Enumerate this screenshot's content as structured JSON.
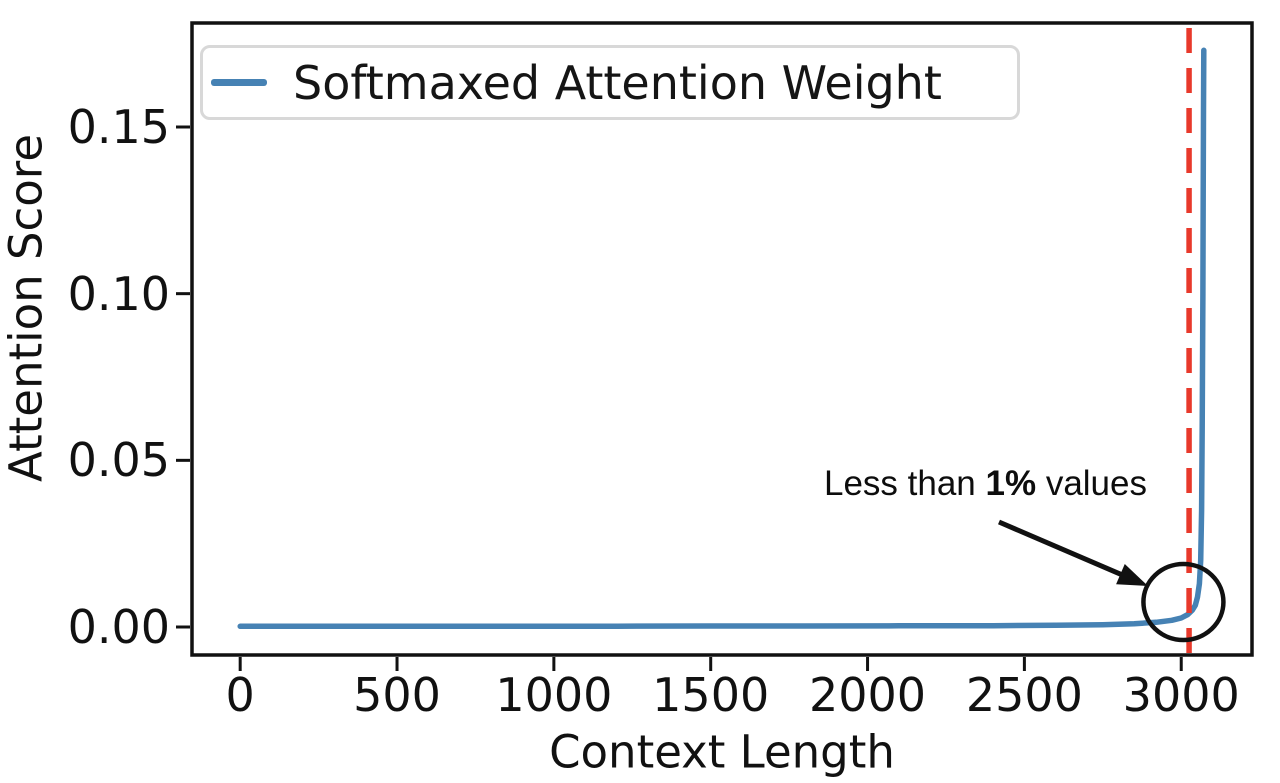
{
  "figure": {
    "background": "#ffffff"
  },
  "chart_data": {
    "type": "line",
    "title": "",
    "xlabel": "Context Length",
    "ylabel": "Attention Score",
    "xlim": [
      -153.6,
      3225.6
    ],
    "ylim": [
      -0.0084,
      0.1812
    ],
    "x_ticks": [
      0,
      500,
      1000,
      1500,
      2000,
      2500,
      3000
    ],
    "x_tick_labels": [
      "0",
      "500",
      "1000",
      "1500",
      "2000",
      "2500",
      "3000"
    ],
    "y_ticks": [
      0,
      0.05,
      0.1,
      0.15
    ],
    "y_tick_labels": [
      "0.00",
      "0.05",
      "0.10",
      "0.15"
    ],
    "grid": false,
    "legend": {
      "position": "upper left",
      "entries": [
        {
          "label": "Softmaxed Attention Weight",
          "color": "#4682b4"
        }
      ]
    },
    "series": [
      {
        "name": "Softmaxed Attention Weight",
        "color": "#4682b4",
        "points": [
          [
            0,
            0.0002
          ],
          [
            300,
            0.0002
          ],
          [
            600,
            0.0002
          ],
          [
            900,
            0.00025
          ],
          [
            1200,
            0.00025
          ],
          [
            1500,
            0.0003
          ],
          [
            1800,
            0.0003
          ],
          [
            2100,
            0.00035
          ],
          [
            2400,
            0.0004
          ],
          [
            2600,
            0.0005
          ],
          [
            2750,
            0.0007
          ],
          [
            2850,
            0.001
          ],
          [
            2920,
            0.0014
          ],
          [
            2970,
            0.002
          ],
          [
            3000,
            0.0027
          ],
          [
            3020,
            0.0037
          ],
          [
            3035,
            0.005
          ],
          [
            3045,
            0.0065
          ],
          [
            3052,
            0.009
          ],
          [
            3058,
            0.013
          ],
          [
            3062,
            0.02
          ],
          [
            3065,
            0.035
          ],
          [
            3067,
            0.06
          ],
          [
            3069,
            0.1
          ],
          [
            3070,
            0.13
          ],
          [
            3071,
            0.155
          ],
          [
            3072,
            0.173
          ]
        ]
      }
    ],
    "vline": {
      "x": 3025,
      "color": "#e8392b",
      "style": "dashed"
    },
    "annotation": {
      "text_prefix": "Less than ",
      "text_bold": "1%",
      "text_suffix": " values",
      "circle": {
        "x": 3007,
        "y": 0.0075
      }
    }
  },
  "colors": {
    "axis": "#111111",
    "series_blue": "#4682b4",
    "vline_red": "#e8392b",
    "legend_border": "#d8d8d8"
  }
}
